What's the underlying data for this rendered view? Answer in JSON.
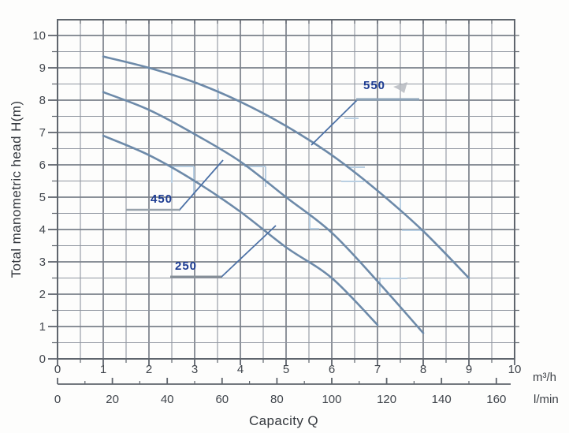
{
  "chart_data": {
    "type": "line",
    "title": "",
    "xlabel": "Capacity Q",
    "ylabel": "Total manometric head H(m)",
    "grid": {
      "on": true,
      "minor_step": 0.5
    },
    "x_axis_primary": {
      "unit": "m³/h",
      "range": [
        0,
        10
      ],
      "ticks": [
        0,
        1,
        2,
        3,
        4,
        5,
        6,
        7,
        8,
        9,
        10
      ]
    },
    "x_axis_secondary": {
      "unit": "l/min",
      "range": [
        0,
        160
      ],
      "ticks": [
        0,
        20,
        40,
        60,
        80,
        100,
        120,
        140,
        160
      ]
    },
    "y_axis": {
      "range": [
        0,
        10
      ],
      "ticks": [
        0,
        1,
        2,
        3,
        4,
        5,
        6,
        7,
        8,
        9,
        10
      ]
    },
    "series": [
      {
        "name": "550",
        "points": [
          [
            1,
            9.35
          ],
          [
            2,
            9.0
          ],
          [
            3,
            8.55
          ],
          [
            4,
            7.95
          ],
          [
            5,
            7.2
          ],
          [
            6,
            6.3
          ],
          [
            7,
            5.2
          ],
          [
            8,
            3.95
          ],
          [
            9,
            2.5
          ]
        ]
      },
      {
        "name": "450",
        "points": [
          [
            1,
            8.25
          ],
          [
            2,
            7.7
          ],
          [
            3,
            6.95
          ],
          [
            4,
            6.1
          ],
          [
            5,
            5.0
          ],
          [
            6,
            3.9
          ],
          [
            7,
            2.4
          ],
          [
            8,
            0.8
          ]
        ]
      },
      {
        "name": "250",
        "points": [
          [
            1,
            6.9
          ],
          [
            2,
            6.3
          ],
          [
            3,
            5.5
          ],
          [
            4,
            4.55
          ],
          [
            5,
            3.45
          ],
          [
            6,
            2.5
          ],
          [
            7,
            1.05
          ]
        ]
      }
    ],
    "legend_position": "labels-on-chart"
  },
  "colors": {
    "curve": "#6d8aa9",
    "curve_label": "#1d3c92",
    "leader": "#4c71a6",
    "grid_minor": "#9096a0",
    "grid_major": "#7a808a",
    "border": "#5f656d",
    "tick_text": "#3f444b",
    "artifact": "#b9cfe2"
  }
}
